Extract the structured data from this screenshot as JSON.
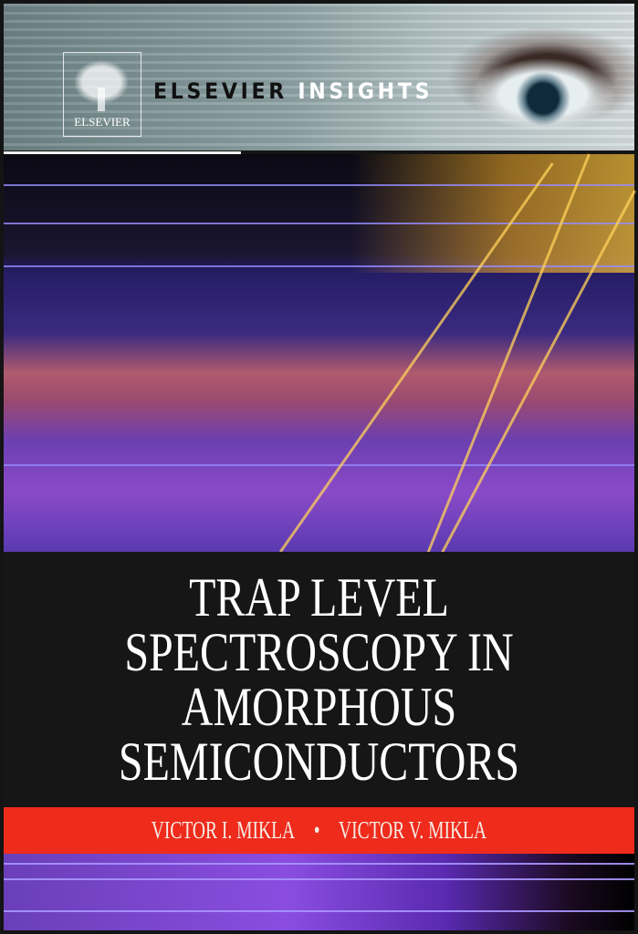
{
  "publisher": {
    "logo_text": "ELSEVIER",
    "series_part1": "ELSEVIER",
    "series_part2": "INSIGHTS"
  },
  "title_lines": [
    "TRAP LEVEL",
    "SPECTROSCOPY IN",
    "AMORPHOUS",
    "SEMICONDUCTORS"
  ],
  "authors": {
    "author1": "VICTOR I. MIKLA",
    "separator": "•",
    "author2": "VICTOR V. MIKLA"
  },
  "colors": {
    "author_band": "#ef2b1c",
    "title_background": "#161616"
  }
}
